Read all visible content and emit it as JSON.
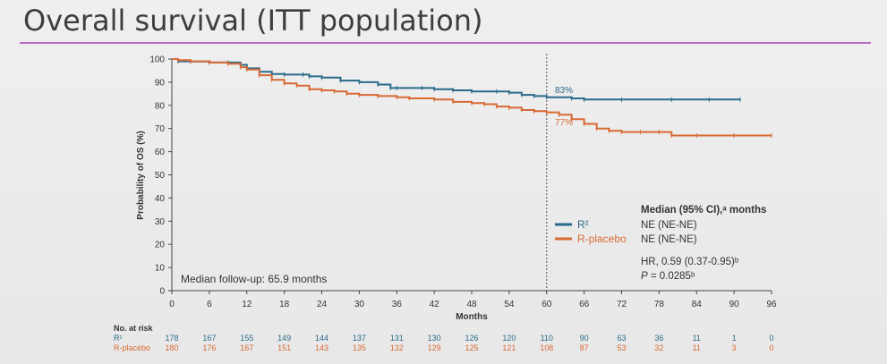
{
  "slide": {
    "title": "Overall survival (ITT population)"
  },
  "colors": {
    "r2": "#2a6b8a",
    "placebo": "#d86a34",
    "accent_rule": "#b56fc0",
    "text": "#333333"
  },
  "chart_data": {
    "type": "line",
    "subtype": "kaplan-meier",
    "xlabel": "Months",
    "ylabel": "Probability of OS (%)",
    "xlim": [
      0,
      96
    ],
    "ylim": [
      0,
      100
    ],
    "x_ticks": [
      "0",
      "6",
      "12",
      "18",
      "24",
      "30",
      "36",
      "42",
      "48",
      "54",
      "60",
      "66",
      "72",
      "78",
      "84",
      "90",
      "96"
    ],
    "y_ticks": [
      "0",
      "10",
      "20",
      "30",
      "40",
      "50",
      "60",
      "70",
      "80",
      "90",
      "100"
    ],
    "vline_x": 60,
    "series": [
      {
        "name": "R²",
        "color": "#2a6b8a",
        "points": [
          [
            0,
            100
          ],
          [
            1,
            99
          ],
          [
            3,
            98.9
          ],
          [
            6,
            98.5
          ],
          [
            9,
            98.5
          ],
          [
            11,
            97.5
          ],
          [
            12,
            96
          ],
          [
            14,
            94.5
          ],
          [
            16,
            93.5
          ],
          [
            18,
            93.3
          ],
          [
            21,
            93.3
          ],
          [
            22,
            92.5
          ],
          [
            24,
            92
          ],
          [
            27,
            90.7
          ],
          [
            30,
            90
          ],
          [
            33,
            89
          ],
          [
            35,
            87.5
          ],
          [
            36,
            87.5
          ],
          [
            40,
            87.5
          ],
          [
            42,
            87
          ],
          [
            45,
            86.5
          ],
          [
            48,
            86
          ],
          [
            52,
            86
          ],
          [
            54,
            85.5
          ],
          [
            56,
            84.5
          ],
          [
            58,
            84
          ],
          [
            60,
            83.5
          ],
          [
            64,
            83
          ],
          [
            66,
            82.5
          ],
          [
            72,
            82.5
          ],
          [
            80,
            82.5
          ],
          [
            86,
            82.5
          ],
          [
            91,
            82.5
          ]
        ],
        "end_label": "83%"
      },
      {
        "name": "R-placebo",
        "color": "#d86a34",
        "points": [
          [
            0,
            100
          ],
          [
            1,
            99.5
          ],
          [
            3,
            99
          ],
          [
            6,
            98.5
          ],
          [
            9,
            98
          ],
          [
            11,
            96.5
          ],
          [
            12,
            95.5
          ],
          [
            14,
            93
          ],
          [
            16,
            91
          ],
          [
            18,
            89.5
          ],
          [
            20,
            88.5
          ],
          [
            22,
            87
          ],
          [
            24,
            86.5
          ],
          [
            26,
            86
          ],
          [
            28,
            85
          ],
          [
            30,
            84.5
          ],
          [
            33,
            84
          ],
          [
            36,
            83.5
          ],
          [
            38,
            83
          ],
          [
            42,
            82.5
          ],
          [
            45,
            81.5
          ],
          [
            48,
            81
          ],
          [
            50,
            80.5
          ],
          [
            52,
            79.5
          ],
          [
            54,
            79
          ],
          [
            56,
            78
          ],
          [
            58,
            77.5
          ],
          [
            60,
            77
          ],
          [
            62,
            76
          ],
          [
            64,
            74
          ],
          [
            66,
            72
          ],
          [
            68,
            70
          ],
          [
            70,
            69
          ],
          [
            72,
            68.5
          ],
          [
            75,
            68.5
          ],
          [
            78,
            68.5
          ],
          [
            80,
            67
          ],
          [
            84,
            67
          ],
          [
            90,
            67
          ],
          [
            96,
            67
          ]
        ],
        "end_label": "77%"
      }
    ],
    "annotations": {
      "r2_pct": "83%",
      "placebo_pct": "77%",
      "median_followup": "Median follow-up: 65.9 months"
    },
    "legend": {
      "header": "Median (95% CI),ᵃ months",
      "entries": [
        {
          "name": "R²",
          "value": "NE (NE-NE)",
          "color": "#2a6b8a"
        },
        {
          "name": "R-placebo",
          "value": "NE (NE-NE)",
          "color": "#d86a34"
        }
      ],
      "hr": "HR, 0.59 (0.37-0.95)ᵇ",
      "p_prefix": "P",
      "p_value": " = 0.0285ᵇ"
    },
    "at_risk": {
      "title": "No. at risk",
      "rows": [
        {
          "name": "R²",
          "color": "#2a6b8a",
          "values": [
            "178",
            "167",
            "155",
            "149",
            "144",
            "137",
            "131",
            "130",
            "126",
            "120",
            "110",
            "90",
            "63",
            "36",
            "11",
            "1",
            "0"
          ]
        },
        {
          "name": "R-placebo",
          "color": "#d86a34",
          "values": [
            "180",
            "176",
            "167",
            "151",
            "143",
            "135",
            "132",
            "129",
            "125",
            "121",
            "108",
            "87",
            "53",
            "32",
            "11",
            "3",
            "0"
          ]
        }
      ]
    }
  }
}
